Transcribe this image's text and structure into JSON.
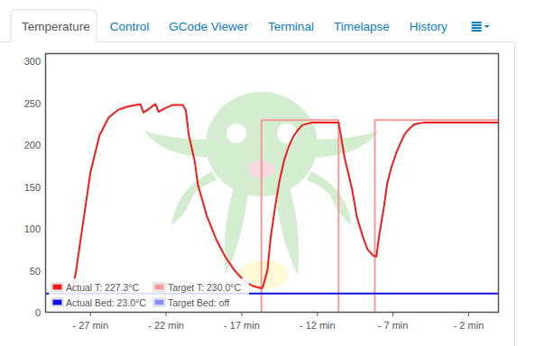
{
  "tabs": [
    "Temperature",
    "Control",
    "GCode Viewer",
    "Terminal",
    "Timelapse",
    "History"
  ],
  "active_tab": 0,
  "chart_data": {
    "type": "line",
    "xlim": [
      -30,
      0
    ],
    "xticks": [
      {
        "value": -27,
        "label": "- 27 min"
      },
      {
        "value": -22,
        "label": "- 22 min"
      },
      {
        "value": -17,
        "label": "- 17 min"
      },
      {
        "value": -12,
        "label": "- 12 min"
      },
      {
        "value": -7,
        "label": "- 7 min"
      },
      {
        "value": -2,
        "label": "- 2 min"
      }
    ],
    "ylim": [
      0,
      310
    ],
    "yticks": [
      0,
      50,
      100,
      150,
      200,
      250,
      300
    ],
    "grid": false,
    "legend": "bottom-left",
    "series": [
      {
        "name": "Actual T: 227.3°C",
        "color": "#ee1c1c",
        "x": [
          -28.2,
          -27.95,
          -27.6,
          -27.0,
          -26.4,
          -25.8,
          -25.2,
          -24.6,
          -24.0,
          -23.7,
          -23.5,
          -23.1,
          -22.8,
          -22.7,
          -22.5,
          -22.1,
          -21.6,
          -20.9,
          -20.7,
          -20.5,
          -20.1,
          -19.9,
          -19.3,
          -18.7,
          -18.1,
          -17.5,
          -16.9,
          -16.3,
          -15.7,
          -15.6,
          -15.3,
          -15.1,
          -14.8,
          -14.5,
          -14.2,
          -13.9,
          -13.6,
          -13.3,
          -13.0,
          -12.4,
          -10.6,
          -10.5,
          -10.2,
          -9.7,
          -9.4,
          -9.0,
          -8.7,
          -8.3,
          -8.1,
          -7.9,
          -7.6,
          -7.4,
          -7.1,
          -6.8,
          -6.5,
          -6.2,
          -5.9,
          -5.6,
          -5.0,
          0
        ],
        "values": [
          25,
          50,
          94,
          168,
          212,
          233,
          242,
          246,
          248,
          249,
          239,
          244,
          248,
          249,
          240,
          244,
          248,
          248,
          242,
          212,
          180,
          153,
          115,
          88,
          67,
          51,
          39,
          32,
          29,
          31,
          51,
          88,
          126,
          158,
          182,
          198,
          210,
          218,
          224,
          227,
          227,
          217,
          185,
          147,
          115,
          91,
          76,
          68,
          67,
          94,
          126,
          153,
          174,
          190,
          203,
          214,
          220,
          225,
          227,
          227
        ]
      },
      {
        "name": "Target T: 230.0°C",
        "color": "#f59a9a",
        "x": [
          -30,
          -15.7,
          -15.7,
          -10.6,
          -10.6,
          -8.2,
          -8.2,
          0
        ],
        "values": [
          0,
          0,
          230,
          230,
          0,
          0,
          230,
          230
        ]
      },
      {
        "name": "Actual Bed: 23.0°C",
        "color": "#1010ee",
        "x": [
          -30,
          0
        ],
        "values": [
          23,
          23
        ]
      },
      {
        "name": "Target Bed: off",
        "color": "#8a8af5",
        "x": [
          -30,
          0
        ],
        "values": [
          0,
          0
        ]
      }
    ]
  }
}
